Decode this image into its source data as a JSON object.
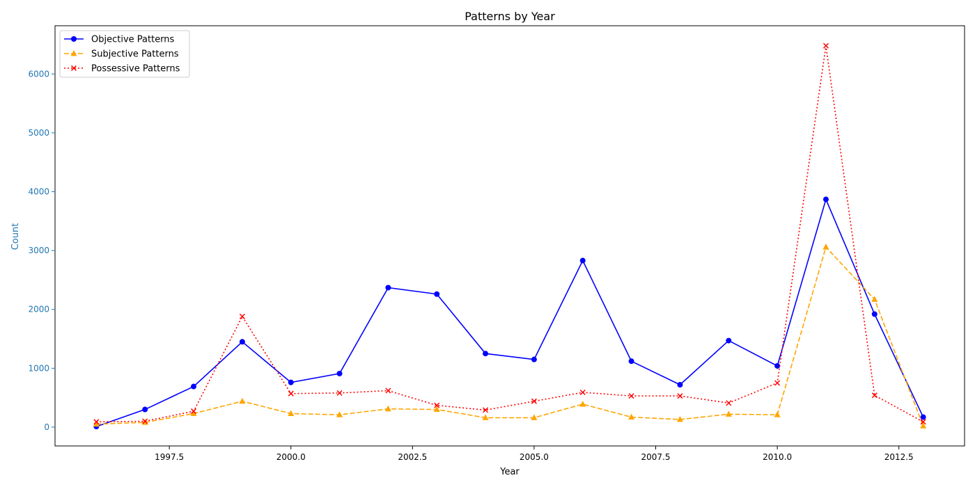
{
  "chart_data": {
    "type": "line",
    "title": "Patterns by Year",
    "xlabel": "Year",
    "ylabel": "Count",
    "xlim": [
      1995.15,
      2013.85
    ],
    "ylim": [
      -320,
      6820
    ],
    "xticks": [
      1997.5,
      2000.0,
      2002.5,
      2005.0,
      2007.5,
      2010.0,
      2012.5
    ],
    "xtick_labels": [
      "1997.5",
      "2000.0",
      "2002.5",
      "2005.0",
      "2007.5",
      "2010.0",
      "2012.5"
    ],
    "yticks": [
      0,
      1000,
      2000,
      3000,
      4000,
      5000,
      6000
    ],
    "ytick_labels": [
      "0",
      "1000",
      "2000",
      "3000",
      "4000",
      "5000",
      "6000"
    ],
    "grid": false,
    "legend_position": "top-left",
    "y_axis_color": "#1f77b4",
    "x": [
      1996,
      1997,
      1998,
      1999,
      2000,
      2001,
      2002,
      2003,
      2004,
      2005,
      2006,
      2007,
      2008,
      2009,
      2010,
      2011,
      2012,
      2013
    ],
    "series": [
      {
        "name": "Objective Patterns",
        "color": "#0000ff",
        "line_style": "solid",
        "marker": "circle",
        "values": [
          10,
          300,
          690,
          1450,
          760,
          910,
          2370,
          2260,
          1250,
          1150,
          2830,
          1120,
          720,
          1470,
          1040,
          3870,
          1920,
          170
        ]
      },
      {
        "name": "Subjective Patterns",
        "color": "#ffa500",
        "line_style": "dashed",
        "marker": "triangle",
        "values": [
          50,
          80,
          230,
          440,
          230,
          210,
          310,
          300,
          160,
          160,
          390,
          170,
          130,
          220,
          210,
          3060,
          2170,
          20
        ]
      },
      {
        "name": "Possessive Patterns",
        "color": "#ff0000",
        "line_style": "dotted",
        "marker": "x",
        "values": [
          90,
          100,
          270,
          1880,
          570,
          580,
          620,
          370,
          290,
          440,
          590,
          530,
          530,
          410,
          750,
          6480,
          540,
          90
        ]
      }
    ]
  }
}
